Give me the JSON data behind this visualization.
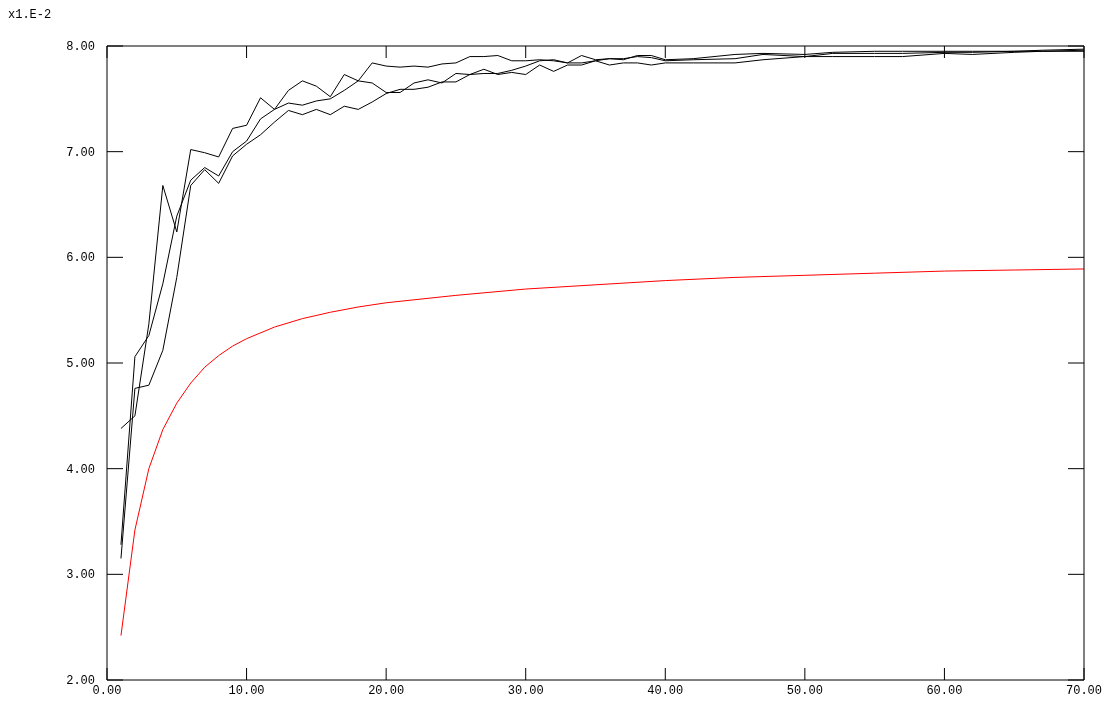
{
  "chart_data": {
    "type": "line",
    "ylabel": "x1.E-2",
    "xlim": [
      0,
      70
    ],
    "xticks": [
      {
        "value": 0,
        "label": "0.00"
      },
      {
        "value": 10,
        "label": "10.00"
      },
      {
        "value": 20,
        "label": "20.00"
      },
      {
        "value": 30,
        "label": "30.00"
      },
      {
        "value": 40,
        "label": "40.00"
      },
      {
        "value": 50,
        "label": "50.00"
      },
      {
        "value": 60,
        "label": "60.00"
      },
      {
        "value": 70,
        "label": "70.00"
      }
    ],
    "ylim": [
      2,
      8
    ],
    "yticks": [
      {
        "value": 2,
        "label": "2.00"
      },
      {
        "value": 3,
        "label": "3.00"
      },
      {
        "value": 4,
        "label": "4.00"
      },
      {
        "value": 5,
        "label": "5.00"
      },
      {
        "value": 6,
        "label": "6.00"
      },
      {
        "value": 7,
        "label": "7.00"
      },
      {
        "value": 8,
        "label": "8.00"
      }
    ],
    "series": [
      {
        "color": "#000000",
        "x": [
          1,
          2,
          3,
          4,
          5,
          6,
          7,
          8,
          9,
          10,
          11,
          12,
          13,
          14,
          15,
          16,
          17,
          18,
          19,
          20,
          21,
          22,
          23,
          24,
          25,
          26,
          27,
          28,
          29,
          30,
          31,
          32,
          33,
          34,
          35,
          36,
          37,
          38,
          39,
          40,
          42,
          45,
          47,
          50,
          52,
          55,
          57,
          60,
          62,
          65,
          67,
          70
        ],
        "values": [
          4.38,
          4.5,
          5.37,
          6.68,
          6.24,
          7.02,
          6.99,
          6.95,
          7.22,
          7.25,
          7.51,
          7.4,
          7.58,
          7.67,
          7.62,
          7.52,
          7.73,
          7.67,
          7.84,
          7.81,
          7.8,
          7.81,
          7.8,
          7.83,
          7.84,
          7.9,
          7.9,
          7.91,
          7.86,
          7.86,
          7.87,
          7.86,
          7.84,
          7.91,
          7.87,
          7.88,
          7.87,
          7.91,
          7.91,
          7.87,
          7.88,
          7.92,
          7.93,
          7.92,
          7.94,
          7.95,
          7.95,
          7.95,
          7.95,
          7.95,
          7.96,
          7.97
        ]
      },
      {
        "color": "#000000",
        "x": [
          1,
          2,
          3,
          4,
          5,
          6,
          7,
          8,
          9,
          10,
          11,
          12,
          13,
          14,
          15,
          16,
          17,
          18,
          19,
          20,
          21,
          22,
          23,
          24,
          25,
          26,
          27,
          28,
          29,
          30,
          31,
          32,
          33,
          34,
          35,
          36,
          37,
          38,
          39,
          40,
          42,
          45,
          47,
          50,
          52,
          55,
          57,
          60,
          62,
          65,
          67,
          70
        ],
        "values": [
          3.28,
          5.06,
          5.26,
          5.75,
          6.39,
          6.73,
          6.85,
          6.77,
          7,
          7.1,
          7.31,
          7.4,
          7.46,
          7.44,
          7.48,
          7.5,
          7.58,
          7.67,
          7.65,
          7.56,
          7.56,
          7.65,
          7.68,
          7.65,
          7.74,
          7.73,
          7.78,
          7.73,
          7.75,
          7.73,
          7.82,
          7.76,
          7.82,
          7.82,
          7.86,
          7.88,
          7.88,
          7.9,
          7.89,
          7.86,
          7.87,
          7.88,
          7.92,
          7.9,
          7.93,
          7.93,
          7.93,
          7.94,
          7.94,
          7.95,
          7.95,
          7.96
        ]
      },
      {
        "color": "#000000",
        "x": [
          1,
          2,
          3,
          4,
          5,
          6,
          7,
          8,
          9,
          10,
          11,
          12,
          13,
          14,
          15,
          16,
          17,
          18,
          19,
          20,
          21,
          22,
          23,
          24,
          25,
          26,
          27,
          28,
          29,
          30,
          31,
          32,
          33,
          34,
          35,
          36,
          37,
          38,
          39,
          40,
          42,
          45,
          47,
          50,
          52,
          55,
          57,
          60,
          62,
          65,
          67,
          70
        ],
        "values": [
          3.15,
          4.76,
          4.79,
          5.12,
          5.81,
          6.68,
          6.83,
          6.7,
          6.96,
          7.07,
          7.16,
          7.28,
          7.39,
          7.35,
          7.4,
          7.35,
          7.43,
          7.4,
          7.47,
          7.55,
          7.59,
          7.59,
          7.61,
          7.66,
          7.66,
          7.73,
          7.74,
          7.74,
          7.77,
          7.81,
          7.86,
          7.87,
          7.84,
          7.84,
          7.86,
          7.82,
          7.84,
          7.84,
          7.82,
          7.84,
          7.84,
          7.84,
          7.87,
          7.9,
          7.9,
          7.9,
          7.9,
          7.93,
          7.92,
          7.94,
          7.95,
          7.95
        ]
      },
      {
        "color": "#ff0000",
        "x": [
          1,
          2,
          3,
          4,
          5,
          6,
          7,
          8,
          9,
          10,
          12,
          14,
          16,
          18,
          20,
          25,
          30,
          35,
          40,
          45,
          50,
          55,
          60,
          65,
          70
        ],
        "values": [
          2.42,
          3.42,
          4.0,
          4.37,
          4.62,
          4.81,
          4.96,
          5.07,
          5.16,
          5.23,
          5.34,
          5.42,
          5.48,
          5.53,
          5.57,
          5.64,
          5.7,
          5.74,
          5.78,
          5.81,
          5.83,
          5.85,
          5.87,
          5.88,
          5.89
        ]
      }
    ]
  }
}
